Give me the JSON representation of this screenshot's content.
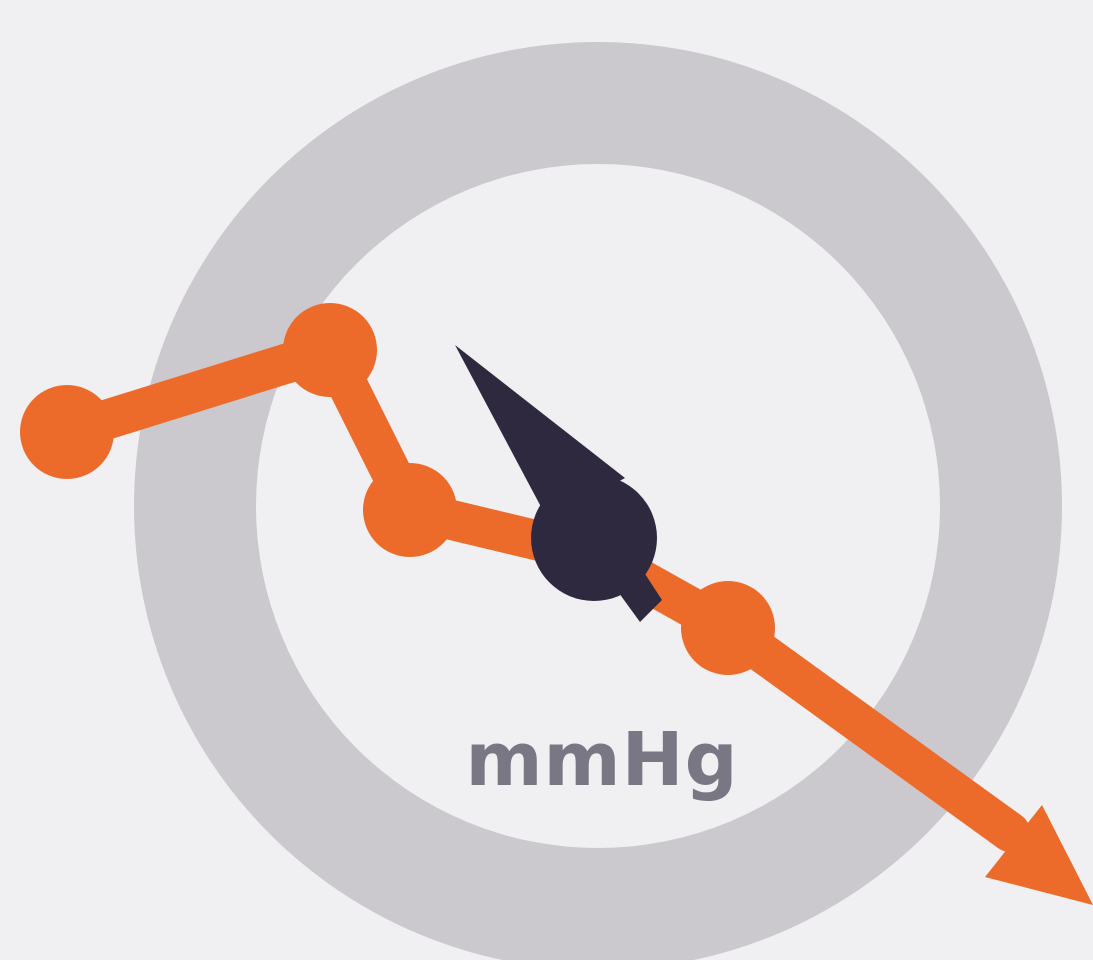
{
  "gauge": {
    "unit_label": "mmHg",
    "needle_level": 0.36
  },
  "colors": {
    "background": "#f0eff2",
    "ring": "#ccc9ce",
    "ring_inner": "#f0eff2",
    "trend_line": "#ec6b2b",
    "needle": "#2f2940",
    "unit_text": "#7a7785"
  },
  "icons": {
    "main": "blood-pressure-gauge-icon",
    "trend": "downward-trend-arrow-icon",
    "needle": "gauge-needle-icon"
  }
}
